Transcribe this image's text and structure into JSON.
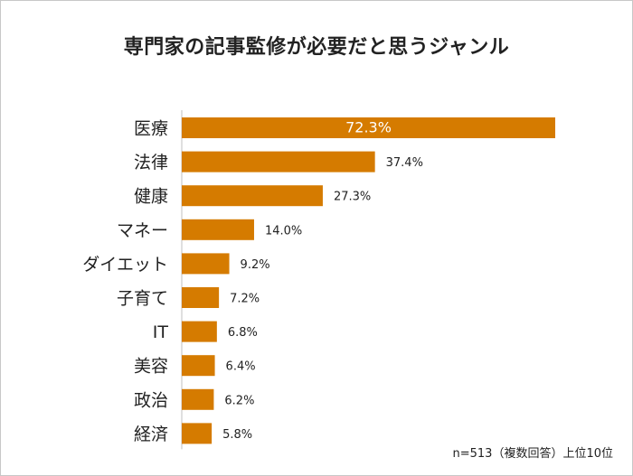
{
  "chart_data": {
    "type": "bar",
    "orientation": "horizontal",
    "title": "専門家の記事監修が必要だと思うジャンル",
    "categories": [
      "医療",
      "法律",
      "健康",
      "マネー",
      "ダイエット",
      "子育て",
      "IT",
      "美容",
      "政治",
      "経済"
    ],
    "values": [
      72.3,
      37.4,
      27.3,
      14.0,
      9.2,
      7.2,
      6.8,
      6.4,
      6.2,
      5.8
    ],
    "value_labels": [
      "72.3%",
      "37.4%",
      "27.3%",
      "14.0%",
      "9.2%",
      "7.2%",
      "6.8%",
      "6.4%",
      "6.2%",
      "5.8%"
    ],
    "xlim": [
      0,
      72.3
    ],
    "grid": false,
    "legend": "none",
    "bar_color": "#D57B00",
    "inside_label_color": "#ffffff",
    "note": "n=513（複数回答）上位10位"
  }
}
